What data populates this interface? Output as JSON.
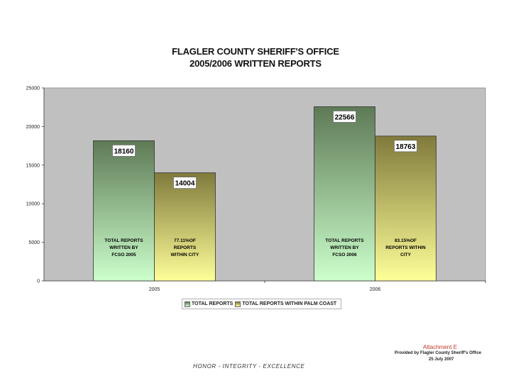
{
  "chart_data": {
    "type": "bar",
    "title": "FLAGLER COUNTY SHERIFF'S OFFICE",
    "subtitle": "2005/2006 WRITTEN REPORTS",
    "categories": [
      "2005",
      "2006"
    ],
    "series": [
      {
        "name": "TOTAL REPORTS",
        "values": [
          18160,
          22566
        ],
        "value_labels": [
          "18160",
          "22566"
        ],
        "annotations": [
          [
            "TOTAL REPORTS",
            "WRITTEN BY",
            "FCSO   2005"
          ],
          [
            "TOTAL REPORTS",
            "WRITTEN BY",
            "FCSO   2006"
          ]
        ],
        "color_top": "#5e7a56",
        "color_bottom": "#ccffcc"
      },
      {
        "name": "TOTAL REPORTS WITHIN PALM COAST",
        "values": [
          14004,
          18763
        ],
        "value_labels": [
          "14004",
          "18763"
        ],
        "annotations": [
          [
            "77.11%OF",
            "REPORTS",
            "WITHIN CITY"
          ],
          [
            "83.15%OF",
            "REPORTS WITHIN",
            "CITY"
          ]
        ],
        "color_top": "#807a3c",
        "color_bottom": "#ffff99"
      }
    ],
    "ylim": [
      0,
      25000
    ],
    "yticks": [
      "0",
      "5000",
      "10000",
      "15000",
      "20000",
      "25000"
    ],
    "plot_background": "#c0c0c0",
    "legend_position": "bottom",
    "grid": false
  },
  "footer": {
    "motto": "HONOR  -  INTEGRITY  -  EXCELLENCE",
    "attachment": "Attachment E",
    "provided_by": "Provided by Flagler County Sheriff's Office",
    "date": "25 July 2007"
  }
}
